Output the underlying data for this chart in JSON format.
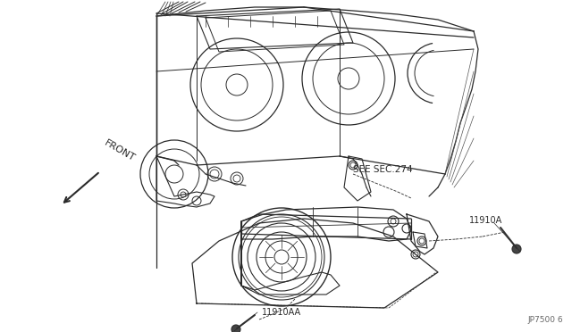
{
  "bg_color": "#ffffff",
  "line_color": "#2a2a2a",
  "fig_width": 6.4,
  "fig_height": 3.72,
  "dpi": 100,
  "labels": {
    "front_text": "FRONT",
    "see_sec": "SEE SEC.274",
    "part1": "11910A",
    "part2": "11910AA",
    "part_code": "JP7500 6"
  }
}
